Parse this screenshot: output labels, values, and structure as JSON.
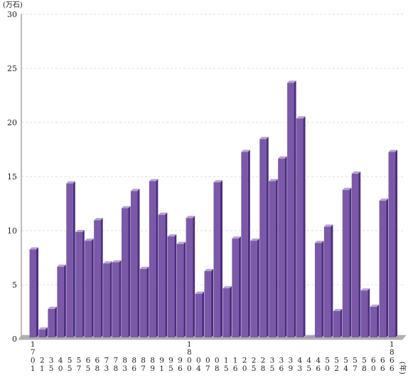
{
  "chart_data": {
    "type": "bar",
    "y_unit_label": "(万石)",
    "x_unit_label": "(年)",
    "ylim": [
      0,
      30
    ],
    "yticks": [
      "0",
      "5",
      "10",
      "15",
      "20",
      "25",
      "30"
    ],
    "grid": true,
    "categories": [
      "1701",
      "21",
      "35",
      "40",
      "55",
      "57",
      "65",
      "68",
      "73",
      "78",
      "83",
      "86",
      "87",
      "89",
      "91",
      "95",
      "96",
      "1800",
      "04",
      "07",
      "08",
      "15",
      "16",
      "20",
      "25",
      "28",
      "35",
      "36",
      "39",
      "43",
      "45",
      "46",
      "50",
      "52",
      "54",
      "57",
      "58",
      "60",
      "66",
      "1866"
    ],
    "values": [
      8.4,
      1.0,
      2.9,
      6.8,
      14.5,
      10.0,
      9.2,
      11.1,
      7.1,
      7.2,
      12.2,
      13.8,
      6.6,
      14.7,
      11.6,
      9.6,
      8.9,
      11.3,
      4.3,
      6.4,
      14.6,
      4.8,
      9.4,
      17.4,
      9.2,
      18.6,
      14.7,
      16.8,
      23.8,
      20.5,
      0.3,
      9.0,
      10.5,
      2.7,
      13.9,
      15.4,
      4.6,
      3.1,
      12.9,
      17.4
    ],
    "colors": {
      "bar_front": "#7b59a8",
      "bar_side": "#4b2d80",
      "bar_top": "#b6a1d3",
      "floor": "#b0b0b0",
      "grid": "#dcdcdc",
      "axis": "#777777"
    }
  }
}
